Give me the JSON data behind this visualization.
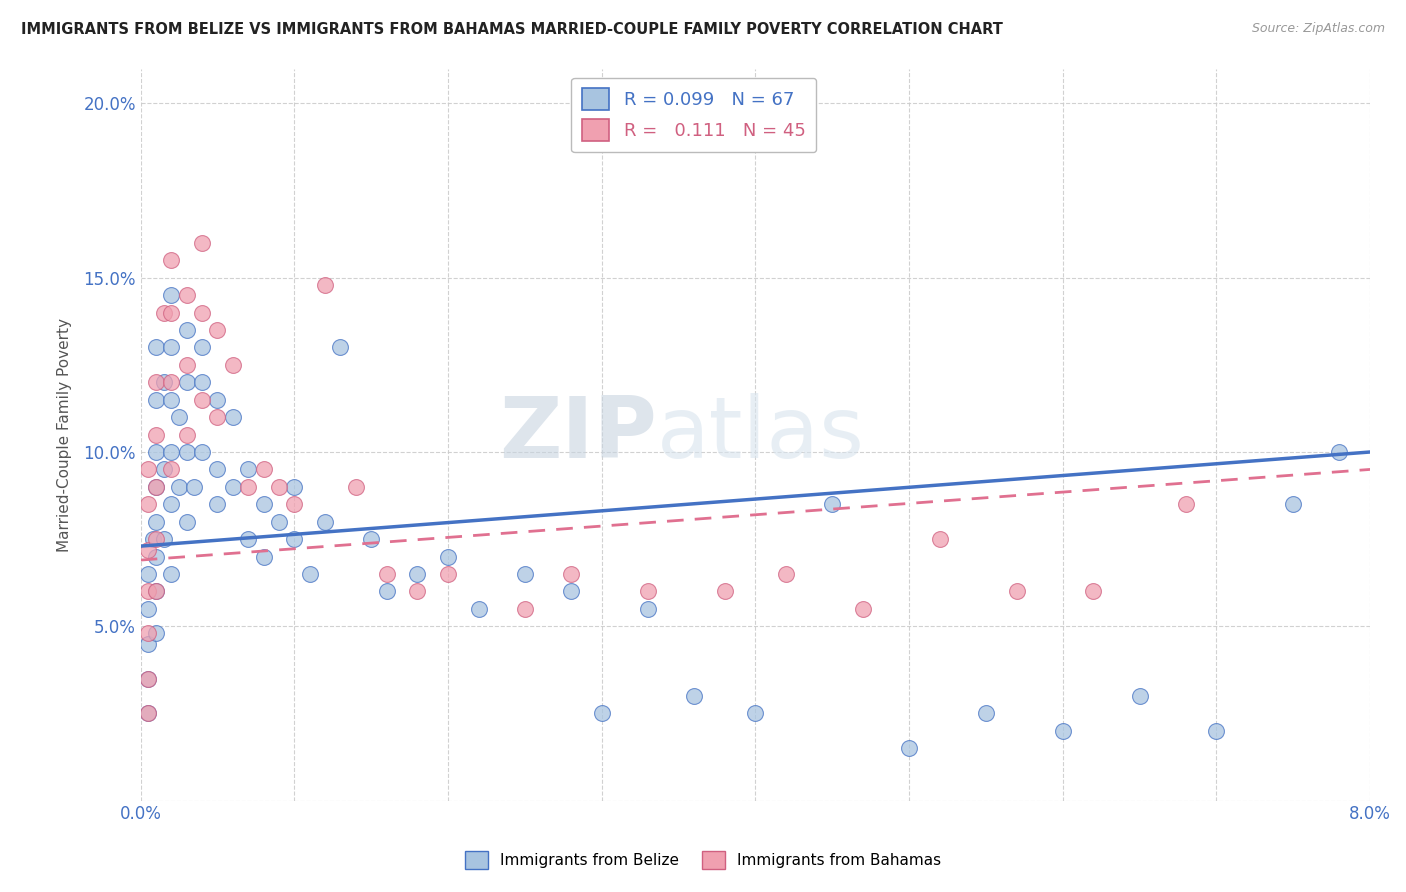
{
  "title": "IMMIGRANTS FROM BELIZE VS IMMIGRANTS FROM BAHAMAS MARRIED-COUPLE FAMILY POVERTY CORRELATION CHART",
  "source": "Source: ZipAtlas.com",
  "xlabel_label": "",
  "ylabel_label": "Married-Couple Family Poverty",
  "legend_label1": "Immigrants from Belize",
  "legend_label2": "Immigrants from Bahamas",
  "r1": "0.099",
  "n1": "67",
  "r2": "0.111",
  "n2": "45",
  "xlim": [
    0.0,
    0.08
  ],
  "ylim": [
    0.0,
    0.21
  ],
  "xticks": [
    0.0,
    0.01,
    0.02,
    0.03,
    0.04,
    0.05,
    0.06,
    0.07,
    0.08
  ],
  "yticks": [
    0.0,
    0.05,
    0.1,
    0.15,
    0.2
  ],
  "color_belize": "#a8c4e0",
  "color_bahamas": "#f0a0b0",
  "line_color_belize": "#4472c4",
  "line_color_bahamas": "#e07090",
  "watermark_zip": "ZIP",
  "watermark_atlas": "atlas",
  "background_color": "#ffffff",
  "grid_color": "#cccccc",
  "belize_x": [
    0.0005,
    0.0005,
    0.0005,
    0.0005,
    0.0005,
    0.0008,
    0.001,
    0.001,
    0.001,
    0.001,
    0.001,
    0.001,
    0.001,
    0.001,
    0.0015,
    0.0015,
    0.0015,
    0.002,
    0.002,
    0.002,
    0.002,
    0.002,
    0.002,
    0.0025,
    0.0025,
    0.003,
    0.003,
    0.003,
    0.003,
    0.0035,
    0.004,
    0.004,
    0.004,
    0.005,
    0.005,
    0.005,
    0.006,
    0.006,
    0.007,
    0.007,
    0.008,
    0.008,
    0.009,
    0.01,
    0.01,
    0.011,
    0.012,
    0.013,
    0.015,
    0.016,
    0.018,
    0.02,
    0.022,
    0.025,
    0.028,
    0.03,
    0.033,
    0.036,
    0.04,
    0.045,
    0.05,
    0.055,
    0.06,
    0.065,
    0.07,
    0.075,
    0.078
  ],
  "belize_y": [
    0.065,
    0.055,
    0.045,
    0.035,
    0.025,
    0.075,
    0.13,
    0.115,
    0.1,
    0.09,
    0.08,
    0.07,
    0.06,
    0.048,
    0.12,
    0.095,
    0.075,
    0.145,
    0.13,
    0.115,
    0.1,
    0.085,
    0.065,
    0.11,
    0.09,
    0.135,
    0.12,
    0.1,
    0.08,
    0.09,
    0.13,
    0.12,
    0.1,
    0.095,
    0.115,
    0.085,
    0.11,
    0.09,
    0.095,
    0.075,
    0.085,
    0.07,
    0.08,
    0.075,
    0.09,
    0.065,
    0.08,
    0.13,
    0.075,
    0.06,
    0.065,
    0.07,
    0.055,
    0.065,
    0.06,
    0.025,
    0.055,
    0.03,
    0.025,
    0.085,
    0.015,
    0.025,
    0.02,
    0.03,
    0.02,
    0.085,
    0.1
  ],
  "bahamas_x": [
    0.0005,
    0.0005,
    0.0005,
    0.0005,
    0.0005,
    0.0005,
    0.0005,
    0.001,
    0.001,
    0.001,
    0.001,
    0.001,
    0.0015,
    0.002,
    0.002,
    0.002,
    0.002,
    0.003,
    0.003,
    0.003,
    0.004,
    0.004,
    0.004,
    0.005,
    0.005,
    0.006,
    0.007,
    0.008,
    0.009,
    0.01,
    0.012,
    0.014,
    0.016,
    0.018,
    0.02,
    0.025,
    0.028,
    0.033,
    0.038,
    0.042,
    0.047,
    0.052,
    0.057,
    0.062,
    0.068
  ],
  "bahamas_y": [
    0.095,
    0.085,
    0.072,
    0.06,
    0.048,
    0.035,
    0.025,
    0.12,
    0.105,
    0.09,
    0.075,
    0.06,
    0.14,
    0.155,
    0.14,
    0.12,
    0.095,
    0.145,
    0.125,
    0.105,
    0.16,
    0.14,
    0.115,
    0.135,
    0.11,
    0.125,
    0.09,
    0.095,
    0.09,
    0.085,
    0.148,
    0.09,
    0.065,
    0.06,
    0.065,
    0.055,
    0.065,
    0.06,
    0.06,
    0.065,
    0.055,
    0.075,
    0.06,
    0.06,
    0.085
  ],
  "trendline_belize_x0": 0.0,
  "trendline_belize_y0": 0.073,
  "trendline_belize_x1": 0.08,
  "trendline_belize_y1": 0.1,
  "trendline_bahamas_x0": 0.0,
  "trendline_bahamas_y0": 0.069,
  "trendline_bahamas_x1": 0.08,
  "trendline_bahamas_y1": 0.095
}
